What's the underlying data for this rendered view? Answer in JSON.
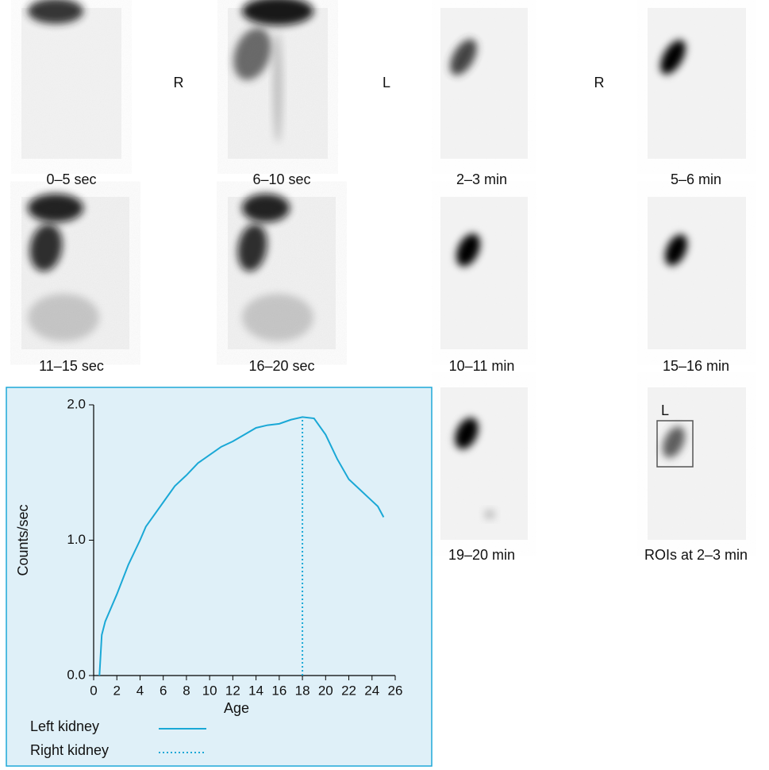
{
  "panels": [
    {
      "label": "0–5 sec"
    },
    {
      "label": "6–10 sec"
    },
    {
      "label": "2–3 min"
    },
    {
      "label": "5–6 min"
    },
    {
      "label": "11–15 sec"
    },
    {
      "label": "16–20 sec"
    },
    {
      "label": "10–11 min"
    },
    {
      "label": "15–16 min"
    },
    {
      "label": "19–20 min"
    },
    {
      "label": "ROIs at 2–3 min"
    }
  ],
  "side_labels": [
    "R",
    "L",
    "R"
  ],
  "roi_label": "L",
  "chart_data": {
    "type": "line",
    "x_label": "Age",
    "y_label": "Counts/sec",
    "xlim": [
      0,
      26
    ],
    "ylim": [
      0,
      2
    ],
    "xticks": [
      0,
      2,
      4,
      6,
      8,
      10,
      12,
      14,
      16,
      18,
      20,
      22,
      24,
      26
    ],
    "yticks": [
      {
        "value": 0,
        "label": "0.0"
      },
      {
        "value": 1,
        "label": "1.0"
      },
      {
        "value": 2,
        "label": "2.0"
      }
    ],
    "legend": "bottom-left",
    "series": [
      {
        "name": "Left kidney",
        "color": "#1aa8d6",
        "style": "solid",
        "x": [
          0.5,
          0.7,
          1,
          2,
          3,
          4,
          4.5,
          6,
          7,
          8,
          9,
          10,
          11,
          12,
          13,
          14,
          15,
          16,
          17,
          18,
          19,
          20,
          21,
          22,
          23,
          24,
          24.5,
          25
        ],
        "values": [
          0,
          0.3,
          0.4,
          0.6,
          0.82,
          1.0,
          1.1,
          1.28,
          1.4,
          1.48,
          1.57,
          1.63,
          1.69,
          1.73,
          1.78,
          1.83,
          1.85,
          1.86,
          1.89,
          1.91,
          1.9,
          1.78,
          1.6,
          1.45,
          1.37,
          1.29,
          1.25,
          1.17
        ]
      },
      {
        "name": "Right kidney",
        "color": "#1aa8d6",
        "style": "dotted",
        "x": [
          18,
          18
        ],
        "values": [
          0,
          1.91
        ]
      }
    ]
  }
}
